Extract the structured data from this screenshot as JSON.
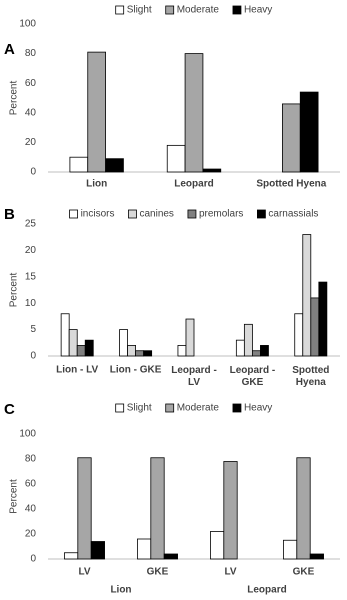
{
  "chart_data": [
    {
      "type": "bar",
      "panel_label": "A",
      "ylabel": "Percent",
      "categories": [
        "Lion",
        "Leopard",
        "Spotted Hyena"
      ],
      "series": [
        {
          "name": "Slight",
          "color": "#ffffff",
          "values": [
            10,
            18,
            0
          ]
        },
        {
          "name": "Moderate",
          "color": "#a6a6a6",
          "values": [
            81,
            80,
            46
          ]
        },
        {
          "name": "Heavy",
          "color": "#000000",
          "values": [
            9,
            2,
            54
          ]
        }
      ],
      "ylim": [
        0,
        100
      ],
      "yticks": [
        0,
        20,
        40,
        60,
        80,
        100
      ]
    },
    {
      "type": "bar",
      "panel_label": "B",
      "ylabel": "Percent",
      "categories": [
        "Lion - LV",
        "Lion - GKE",
        "Leopard - LV",
        "Leopard - GKE",
        "Spotted Hyena"
      ],
      "series": [
        {
          "name": "incisors",
          "color": "#ffffff",
          "values": [
            8,
            5,
            2,
            3,
            8
          ]
        },
        {
          "name": "canines",
          "color": "#d9d9d9",
          "values": [
            5,
            2,
            7,
            6,
            23
          ]
        },
        {
          "name": "premolars",
          "color": "#808080",
          "values": [
            2,
            1,
            0,
            1,
            11
          ]
        },
        {
          "name": "carnassials",
          "color": "#000000",
          "values": [
            3,
            1,
            0,
            2,
            14
          ]
        }
      ],
      "ylim": [
        0,
        25
      ],
      "yticks": [
        0,
        5,
        10,
        15,
        20,
        25
      ]
    },
    {
      "type": "bar",
      "panel_label": "C",
      "ylabel": "Percent",
      "categories": [
        "LV",
        "GKE",
        "LV",
        "GKE"
      ],
      "group_labels": [
        "Lion",
        "Leopard"
      ],
      "series": [
        {
          "name": "Slight",
          "color": "#ffffff",
          "values": [
            5,
            16,
            22,
            15
          ]
        },
        {
          "name": "Moderate",
          "color": "#a6a6a6",
          "values": [
            81,
            81,
            78,
            81
          ]
        },
        {
          "name": "Heavy",
          "color": "#000000",
          "values": [
            14,
            4,
            0,
            4
          ]
        }
      ],
      "ylim": [
        0,
        100
      ],
      "yticks": [
        0,
        20,
        40,
        60,
        80,
        100
      ]
    }
  ]
}
